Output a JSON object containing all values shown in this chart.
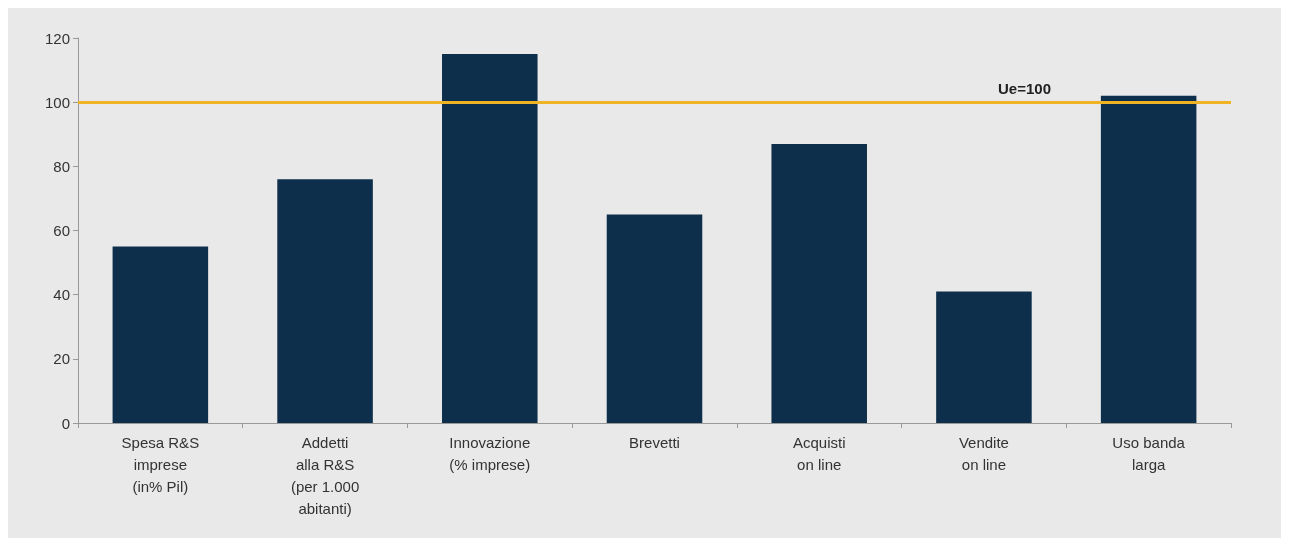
{
  "chart_data": {
    "type": "bar",
    "categories": [
      "Spesa R&S\nimprese\n(in% Pil)",
      "Addetti\nalla R&S\n(per 1.000\nabitanti)",
      "Innovazione\n(% imprese)",
      "Brevetti",
      "Acquisti\non line",
      "Vendite\non line",
      "Uso banda\nlarga"
    ],
    "values": [
      55,
      76,
      115,
      65,
      87,
      41,
      102
    ],
    "color": "#0d2f4b",
    "ylim": [
      0,
      120
    ],
    "yticks": [
      0,
      20,
      40,
      60,
      80,
      100,
      120
    ],
    "grid": false,
    "ref_lines": [
      {
        "axis": "y",
        "value": 100,
        "label": "Ue=100",
        "color": "#f0b323",
        "line_style": "solid"
      }
    ]
  }
}
